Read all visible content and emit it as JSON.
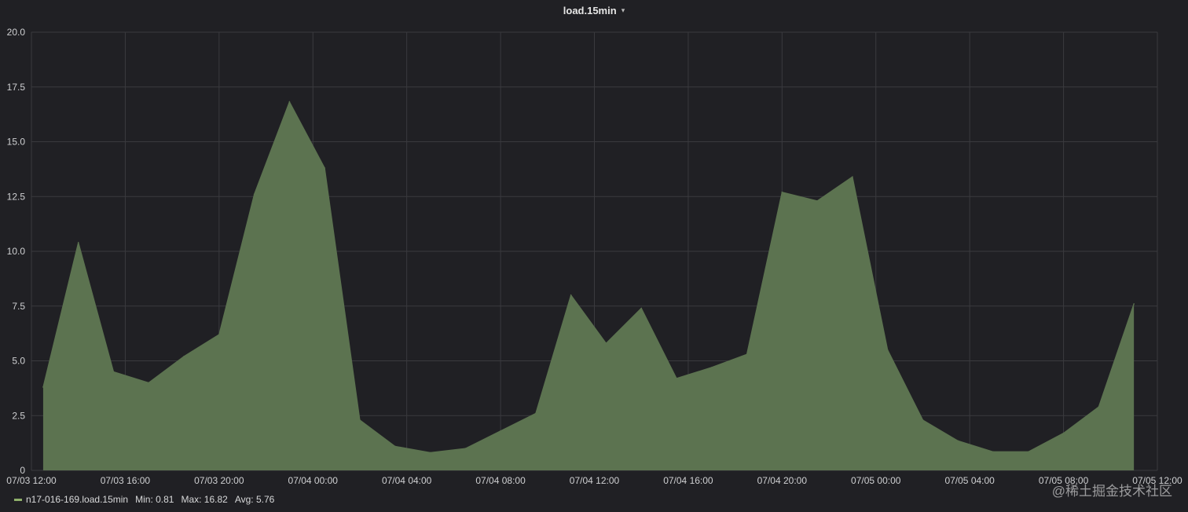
{
  "panel": {
    "title": "load.15min",
    "caret": "▾"
  },
  "chart_data": {
    "type": "area",
    "title": "load.15min",
    "xlabel": "",
    "ylabel": "",
    "ylim": [
      0,
      20
    ],
    "yticks": [
      "0",
      "2.5",
      "5.0",
      "7.5",
      "10.0",
      "12.5",
      "15.0",
      "17.5",
      "20.0"
    ],
    "xtick_labels": [
      "07/03 12:00",
      "07/03 16:00",
      "07/03 20:00",
      "07/04 00:00",
      "07/04 04:00",
      "07/04 08:00",
      "07/04 12:00",
      "07/04 16:00",
      "07/04 20:00",
      "07/05 00:00",
      "07/05 04:00",
      "07/05 08:00",
      "07/05 12:00"
    ],
    "grid": true,
    "legend_position": "bottom-left",
    "series": [
      {
        "name": "n17-016-169.load.15min",
        "color": "#8fb06b",
        "points": [
          [
            "07/03 12:30",
            3.8
          ],
          [
            "07/03 14:00",
            10.4
          ],
          [
            "07/03 15:30",
            4.5
          ],
          [
            "07/03 17:00",
            4.0
          ],
          [
            "07/03 18:30",
            5.2
          ],
          [
            "07/03 20:00",
            6.2
          ],
          [
            "07/03 21:30",
            12.6
          ],
          [
            "07/03 23:00",
            16.82
          ],
          [
            "07/04 00:30",
            13.8
          ],
          [
            "07/04 02:00",
            2.3
          ],
          [
            "07/04 03:30",
            1.1
          ],
          [
            "07/04 05:00",
            0.81
          ],
          [
            "07/04 06:30",
            1.0
          ],
          [
            "07/04 08:00",
            1.8
          ],
          [
            "07/04 09:30",
            2.6
          ],
          [
            "07/04 11:00",
            8.0
          ],
          [
            "07/04 12:30",
            5.8
          ],
          [
            "07/04 14:00",
            7.4
          ],
          [
            "07/04 15:30",
            4.2
          ],
          [
            "07/04 17:00",
            4.7
          ],
          [
            "07/04 18:30",
            5.3
          ],
          [
            "07/04 20:00",
            12.7
          ],
          [
            "07/04 21:30",
            12.3
          ],
          [
            "07/04 23:00",
            13.4
          ],
          [
            "07/05 00:30",
            5.5
          ],
          [
            "07/05 02:00",
            2.3
          ],
          [
            "07/05 03:30",
            1.35
          ],
          [
            "07/05 05:00",
            0.85
          ],
          [
            "07/05 06:30",
            0.85
          ],
          [
            "07/05 08:00",
            1.7
          ],
          [
            "07/05 09:30",
            2.9
          ],
          [
            "07/05 11:00",
            7.6
          ]
        ]
      }
    ]
  },
  "legend": {
    "series_name": "n17-016-169.load.15min",
    "min": "Min: 0.81",
    "max": "Max: 16.82",
    "avg": "Avg: 5.76"
  },
  "watermark": "@稀土掘金技术社区",
  "colors": {
    "background": "#202024",
    "grid": "#3a3a3e",
    "area_fill": "#5c7350",
    "area_line": "#8fb06b"
  }
}
